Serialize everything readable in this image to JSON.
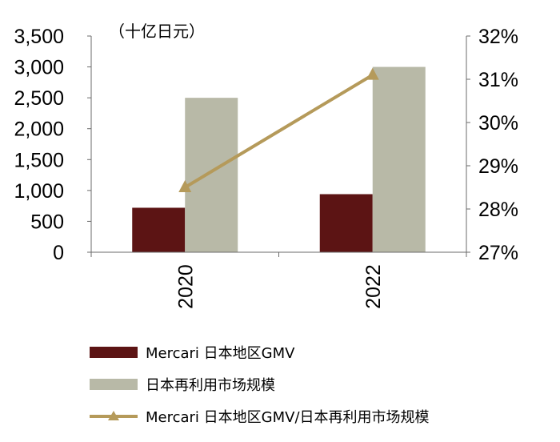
{
  "chart_data": {
    "type": "bar",
    "unit_label": "（十亿日元）",
    "categories": [
      "2020",
      "2022"
    ],
    "series": [
      {
        "name": "Mercari 日本地区GMV",
        "axis": "left",
        "type": "bar",
        "color": "#5c1414",
        "values": [
          720,
          940
        ]
      },
      {
        "name": "日本再利用市场规模",
        "axis": "left",
        "type": "bar",
        "color": "#b8b9a7",
        "values": [
          2500,
          3000
        ]
      },
      {
        "name": "Mercari 日本地区GMV/日本再利用市场规模",
        "axis": "right",
        "type": "line",
        "color": "#b59a5a",
        "values": [
          28.5,
          31.1
        ]
      }
    ],
    "y_left": {
      "min": 0,
      "max": 3500,
      "ticks": [
        "0",
        "500",
        "1,000",
        "1,500",
        "2,000",
        "2,500",
        "3,000",
        "3,500"
      ]
    },
    "y_right": {
      "min": 27,
      "max": 32,
      "ticks": [
        "27%",
        "28%",
        "29%",
        "30%",
        "31%",
        "32%"
      ]
    }
  },
  "legend": [
    {
      "label": "Mercari 日本地区GMV",
      "kind": "bar",
      "color": "#5c1414"
    },
    {
      "label": "日本再利用市场规模",
      "kind": "bar",
      "color": "#b8b9a7"
    },
    {
      "label": "Mercari 日本地区GMV/日本再利用市场规模",
      "kind": "line",
      "color": "#b59a5a"
    }
  ]
}
